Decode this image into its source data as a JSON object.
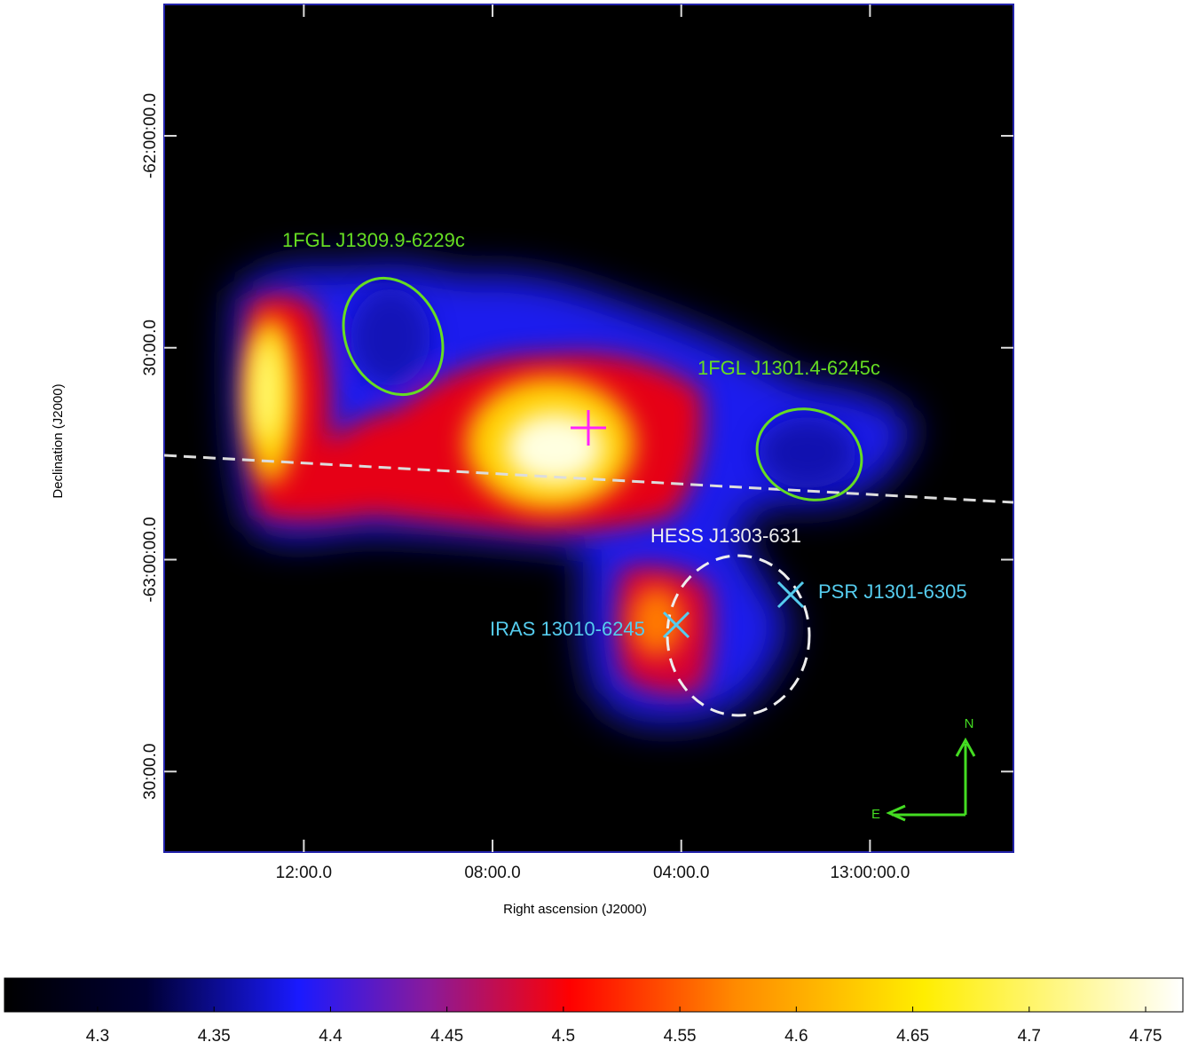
{
  "chart_data": {
    "type": "sky-map",
    "x_label": "Right ascension (J2000)",
    "y_label": "Declination (J2000)",
    "xlim": [
      198.74,
      194.24
    ],
    "xticks": [
      {
        "value": 198,
        "label": "12:00.0"
      },
      {
        "value": 197,
        "label": "08:00.0"
      },
      {
        "value": 196,
        "label": "04:00.0"
      },
      {
        "value": 195,
        "label": "13:00:00.0"
      }
    ],
    "ylim": [
      -63.69,
      -61.69
    ],
    "yticks": [
      {
        "value": -62,
        "label": "-62:00:00.0"
      },
      {
        "value": -62.5,
        "label": "30:00.0"
      },
      {
        "value": -63,
        "label": "-63:00:00.0"
      },
      {
        "value": -63.5,
        "label": "30:00.0"
      }
    ],
    "annotations": [
      "1FGL J1309.9-6229c",
      "1FGL J1301.4-6245c",
      "HESS J1303-631",
      "PSR J1301-6305",
      "IRAS 13010-6245",
      "N",
      "E"
    ],
    "colorbar": {
      "lim": [
        4.26,
        4.766
      ],
      "ticks": [
        4.3,
        4.35,
        4.4,
        4.45,
        4.5,
        4.55,
        4.6,
        4.65,
        4.7,
        4.75
      ]
    }
  }
}
